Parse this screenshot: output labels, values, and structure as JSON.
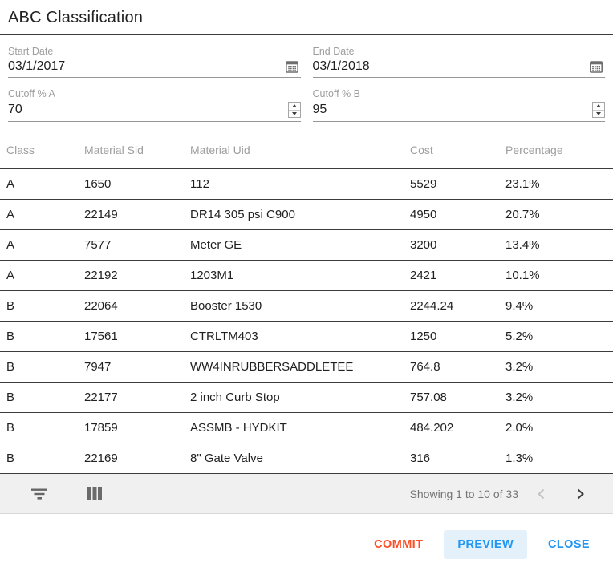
{
  "dialog": {
    "title": "ABC Classification"
  },
  "fields": {
    "start_date": {
      "label": "Start Date",
      "value": "03/1/2017",
      "icon": "calendar-icon"
    },
    "end_date": {
      "label": "End Date",
      "value": "03/1/2018",
      "icon": "calendar-icon"
    },
    "cutoff_a": {
      "label": "Cutoff % A",
      "value": "70",
      "icon": "number-spinner"
    },
    "cutoff_b": {
      "label": "Cutoff % B",
      "value": "95",
      "icon": "number-spinner"
    }
  },
  "table": {
    "columns": [
      "Class",
      "Material Sid",
      "Material Uid",
      "Cost",
      "Percentage"
    ],
    "rows": [
      [
        "A",
        "1650",
        "112",
        "5529",
        "23.1%"
      ],
      [
        "A",
        "22149",
        "DR14 305 psi C900",
        "4950",
        "20.7%"
      ],
      [
        "A",
        "7577",
        "Meter GE",
        "3200",
        "13.4%"
      ],
      [
        "A",
        "22192",
        "1203M1",
        "2421",
        "10.1%"
      ],
      [
        "B",
        "22064",
        "Booster 1530",
        "2244.24",
        "9.4%"
      ],
      [
        "B",
        "17561",
        "CTRLTM403",
        "1250",
        "5.2%"
      ],
      [
        "B",
        "7947",
        "WW4INRUBBERSADDLETEE",
        "764.8",
        "3.2%"
      ],
      [
        "B",
        "22177",
        "2 inch Curb Stop",
        "757.08",
        "3.2%"
      ],
      [
        "B",
        "17859",
        "ASSMB - HYDKIT",
        "484.202",
        "2.0%"
      ],
      [
        "B",
        "22169",
        "8\" Gate Valve",
        "316",
        "1.3%"
      ]
    ]
  },
  "grid_footer": {
    "icons": [
      "filter-icon",
      "columns-icon"
    ],
    "showing_text": "Showing 1 to 10 of 33",
    "prev_enabled": false,
    "next_enabled": true
  },
  "actions": {
    "commit_label": "COMMIT",
    "preview_label": "PREVIEW",
    "close_label": "CLOSE"
  },
  "colors": {
    "commit_orange": "#fc4f26",
    "accent_blue": "#2196f3",
    "preview_bg": "#e4f1fb"
  }
}
